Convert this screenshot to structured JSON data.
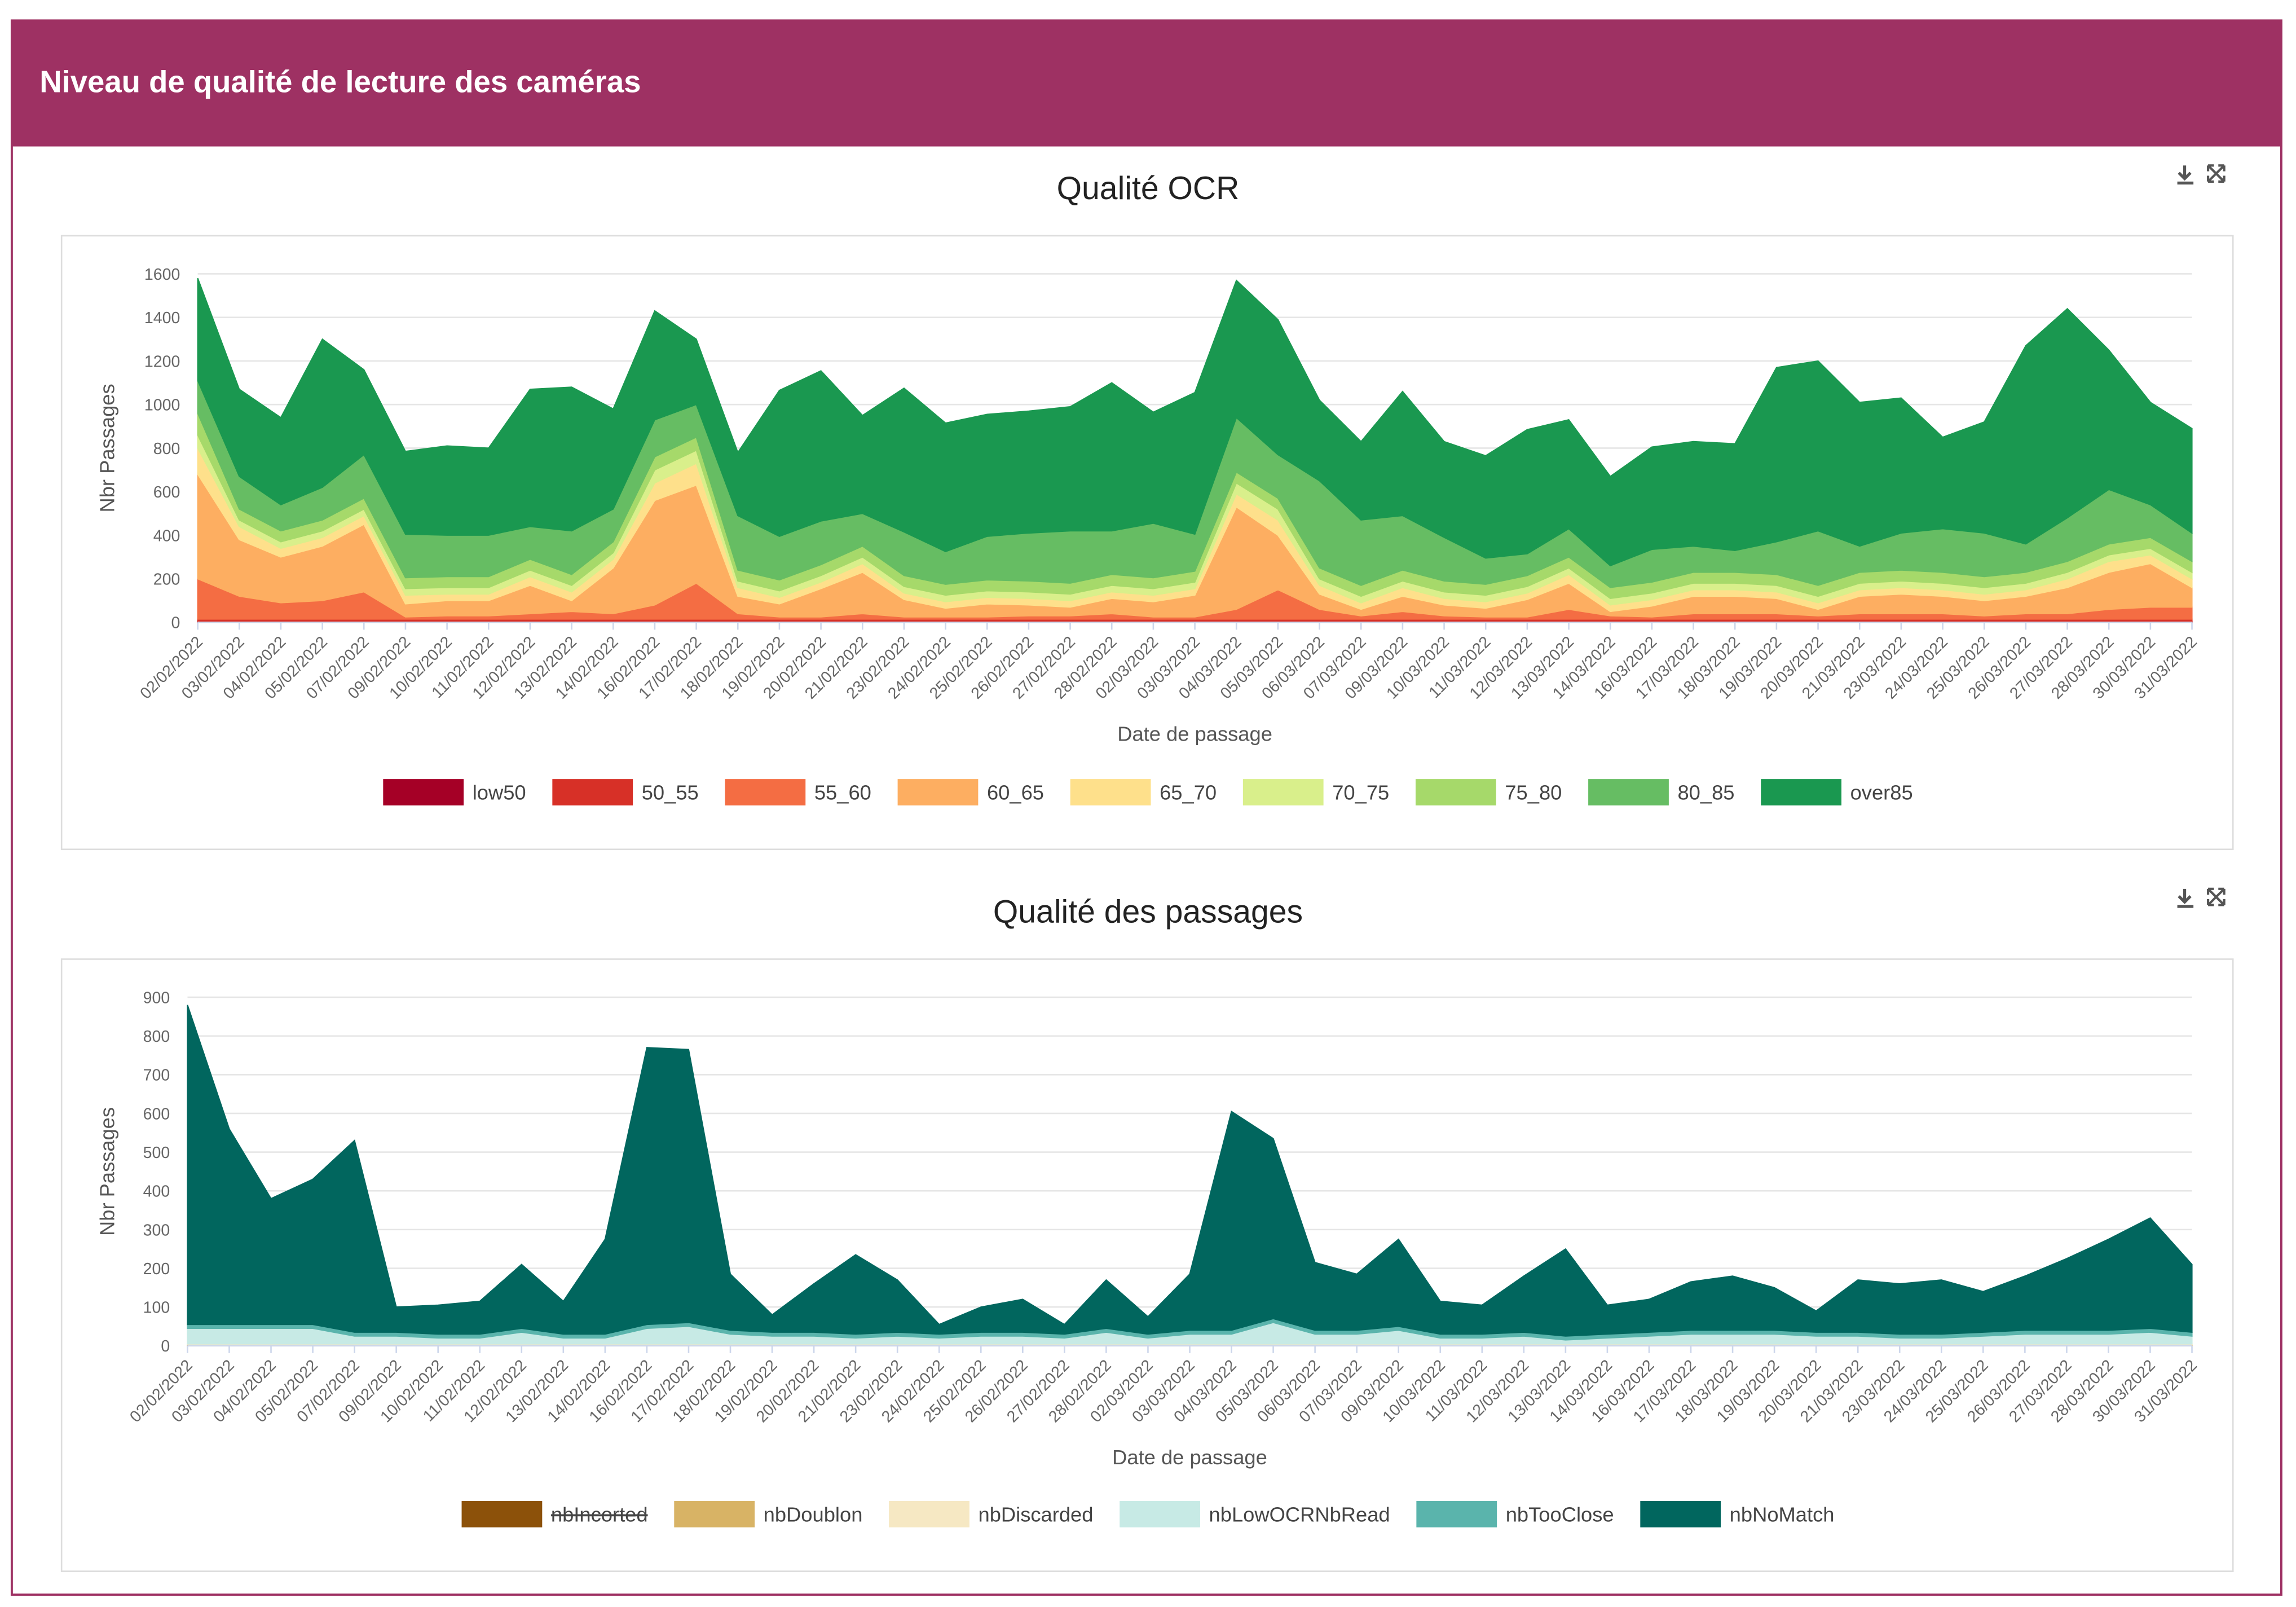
{
  "header": {
    "title": "Niveau de qualité de lecture des caméras"
  },
  "chart_data": [
    {
      "type": "area",
      "stacked": true,
      "title": "Qualité OCR",
      "x_label": "Date de passage",
      "y_label": "Nbr Passages",
      "grid": true,
      "legend": "bottom",
      "ylim": [
        0,
        1600
      ],
      "yticks": [
        0,
        200,
        400,
        600,
        800,
        1000,
        1200,
        1400,
        1600
      ],
      "categories": [
        "02/02/2022",
        "03/02/2022",
        "04/02/2022",
        "05/02/2022",
        "07/02/2022",
        "09/02/2022",
        "10/02/2022",
        "11/02/2022",
        "12/02/2022",
        "13/02/2022",
        "14/02/2022",
        "16/02/2022",
        "17/02/2022",
        "18/02/2022",
        "19/02/2022",
        "20/02/2022",
        "21/02/2022",
        "23/02/2022",
        "24/02/2022",
        "25/02/2022",
        "26/02/2022",
        "27/02/2022",
        "28/02/2022",
        "02/03/2022",
        "03/03/2022",
        "04/03/2022",
        "05/03/2022",
        "06/03/2022",
        "07/03/2022",
        "09/03/2022",
        "10/03/2022",
        "11/03/2022",
        "12/03/2022",
        "13/03/2022",
        "14/03/2022",
        "16/03/2022",
        "17/03/2022",
        "18/03/2022",
        "19/03/2022",
        "20/03/2022",
        "21/03/2022",
        "23/03/2022",
        "24/03/2022",
        "25/03/2022",
        "26/03/2022",
        "27/03/2022",
        "28/03/2022",
        "30/03/2022",
        "31/03/2022"
      ],
      "series": [
        {
          "name": "low50",
          "color": "#a50026",
          "values": [
            5,
            5,
            5,
            5,
            5,
            5,
            5,
            5,
            5,
            5,
            5,
            5,
            5,
            5,
            5,
            5,
            5,
            5,
            5,
            5,
            5,
            5,
            5,
            5,
            5,
            5,
            5,
            5,
            5,
            5,
            5,
            5,
            5,
            5,
            5,
            5,
            5,
            5,
            5,
            5,
            5,
            5,
            5,
            5,
            5,
            5,
            5,
            5,
            5
          ]
        },
        {
          "name": "50_55",
          "color": "#d73027",
          "values": [
            10,
            10,
            10,
            10,
            10,
            10,
            10,
            10,
            10,
            10,
            10,
            10,
            10,
            10,
            10,
            10,
            10,
            10,
            10,
            10,
            10,
            10,
            10,
            10,
            10,
            10,
            10,
            10,
            10,
            10,
            10,
            10,
            10,
            10,
            10,
            10,
            10,
            10,
            10,
            10,
            10,
            10,
            10,
            10,
            10,
            10,
            10,
            10,
            10
          ]
        },
        {
          "name": "55_60",
          "color": "#f46d43",
          "values": [
            185,
            105,
            75,
            85,
            125,
            10,
            15,
            15,
            25,
            35,
            25,
            65,
            165,
            25,
            10,
            10,
            25,
            10,
            10,
            10,
            15,
            15,
            25,
            10,
            10,
            45,
            135,
            45,
            15,
            35,
            15,
            10,
            10,
            45,
            15,
            10,
            25,
            25,
            25,
            15,
            25,
            25,
            25,
            15,
            25,
            25,
            45,
            55,
            55
          ]
        },
        {
          "name": "60_65",
          "color": "#fdae61",
          "values": [
            480,
            260,
            210,
            250,
            310,
            60,
            70,
            70,
            130,
            50,
            210,
            480,
            450,
            80,
            60,
            130,
            190,
            80,
            40,
            60,
            50,
            40,
            70,
            70,
            100,
            470,
            250,
            70,
            30,
            70,
            50,
            40,
            80,
            120,
            20,
            50,
            80,
            80,
            70,
            30,
            80,
            90,
            80,
            70,
            80,
            120,
            170,
            200,
            90
          ]
        },
        {
          "name": "65_70",
          "color": "#fee08b",
          "values": [
            120,
            60,
            40,
            40,
            40,
            40,
            30,
            30,
            40,
            40,
            40,
            80,
            100,
            40,
            30,
            30,
            40,
            30,
            30,
            30,
            30,
            30,
            30,
            30,
            30,
            60,
            70,
            40,
            30,
            40,
            30,
            30,
            30,
            40,
            30,
            30,
            30,
            30,
            30,
            30,
            30,
            30,
            30,
            30,
            30,
            40,
            50,
            40,
            40
          ]
        },
        {
          "name": "70_75",
          "color": "#d9ef8b",
          "values": [
            60,
            30,
            30,
            30,
            30,
            30,
            30,
            30,
            30,
            30,
            30,
            60,
            60,
            30,
            30,
            30,
            30,
            30,
            30,
            30,
            30,
            30,
            30,
            30,
            30,
            50,
            50,
            30,
            30,
            30,
            30,
            30,
            30,
            30,
            30,
            30,
            30,
            30,
            30,
            30,
            30,
            30,
            30,
            30,
            30,
            30,
            30,
            30,
            30
          ]
        },
        {
          "name": "75_80",
          "color": "#a6d96a",
          "values": [
            100,
            50,
            50,
            50,
            50,
            50,
            50,
            50,
            50,
            50,
            50,
            60,
            60,
            50,
            50,
            50,
            50,
            50,
            50,
            50,
            50,
            50,
            50,
            50,
            50,
            50,
            50,
            50,
            50,
            50,
            50,
            50,
            50,
            50,
            50,
            50,
            50,
            50,
            50,
            50,
            50,
            50,
            50,
            50,
            50,
            50,
            50,
            50,
            50
          ]
        },
        {
          "name": "80_85",
          "color": "#66bd63",
          "values": [
            150,
            150,
            120,
            150,
            200,
            200,
            190,
            190,
            150,
            200,
            150,
            170,
            150,
            250,
            200,
            200,
            150,
            200,
            150,
            200,
            220,
            240,
            200,
            250,
            170,
            250,
            200,
            400,
            300,
            250,
            200,
            120,
            100,
            130,
            100,
            150,
            120,
            100,
            150,
            250,
            120,
            170,
            200,
            200,
            130,
            200,
            250,
            150,
            130
          ]
        },
        {
          "name": "over85",
          "color": "#1a9850",
          "values": [
            470,
            400,
            400,
            680,
            390,
            380,
            410,
            400,
            630,
            660,
            460,
            500,
            300,
            290,
            670,
            690,
            450,
            660,
            590,
            560,
            560,
            570,
            680,
            510,
            650,
            630,
            620,
            370,
            360,
            570,
            440,
            470,
            570,
            500,
            410,
            470,
            480,
            490,
            800,
            780,
            660,
            620,
            420,
            510,
            910,
            960,
            640,
            470,
            480
          ]
        }
      ]
    },
    {
      "type": "area",
      "stacked": true,
      "title": "Qualité des passages",
      "x_label": "Date de passage",
      "y_label": "Nbr Passages",
      "grid": true,
      "legend": "bottom",
      "ylim": [
        0,
        900
      ],
      "yticks": [
        0,
        100,
        200,
        300,
        400,
        500,
        600,
        700,
        800,
        900
      ],
      "categories": [
        "02/02/2022",
        "03/02/2022",
        "04/02/2022",
        "05/02/2022",
        "07/02/2022",
        "09/02/2022",
        "10/02/2022",
        "11/02/2022",
        "12/02/2022",
        "13/02/2022",
        "14/02/2022",
        "16/02/2022",
        "17/02/2022",
        "18/02/2022",
        "19/02/2022",
        "20/02/2022",
        "21/02/2022",
        "23/02/2022",
        "24/02/2022",
        "25/02/2022",
        "26/02/2022",
        "27/02/2022",
        "28/02/2022",
        "02/03/2022",
        "03/03/2022",
        "04/03/2022",
        "05/03/2022",
        "06/03/2022",
        "07/03/2022",
        "09/03/2022",
        "10/03/2022",
        "11/03/2022",
        "12/03/2022",
        "13/03/2022",
        "14/03/2022",
        "16/03/2022",
        "17/03/2022",
        "18/03/2022",
        "19/03/2022",
        "20/03/2022",
        "21/03/2022",
        "23/03/2022",
        "24/03/2022",
        "25/03/2022",
        "26/03/2022",
        "27/03/2022",
        "28/03/2022",
        "30/03/2022",
        "31/03/2022"
      ],
      "series": [
        {
          "name": "nbIncorted",
          "color": "#8c510a",
          "hidden": true
        },
        {
          "name": "nbDoublon",
          "color": "#d8b365",
          "values": [
            3,
            3,
            3,
            3,
            3,
            3,
            3,
            3,
            3,
            3,
            3,
            3,
            3,
            3,
            3,
            3,
            3,
            3,
            3,
            3,
            3,
            3,
            3,
            3,
            3,
            3,
            3,
            3,
            3,
            3,
            3,
            3,
            3,
            3,
            3,
            3,
            3,
            3,
            3,
            3,
            3,
            3,
            3,
            3,
            3,
            3,
            3,
            3,
            3
          ]
        },
        {
          "name": "nbDiscarded",
          "color": "#f6e8c3",
          "values": [
            2,
            2,
            2,
            2,
            2,
            2,
            2,
            2,
            2,
            2,
            2,
            2,
            2,
            2,
            2,
            2,
            2,
            2,
            2,
            2,
            2,
            2,
            2,
            2,
            2,
            2,
            2,
            2,
            2,
            2,
            2,
            2,
            2,
            2,
            2,
            2,
            2,
            2,
            2,
            2,
            2,
            2,
            2,
            2,
            2,
            2,
            2,
            2,
            2
          ]
        },
        {
          "name": "nbLowOCRNbRead",
          "color": "#c7eae5",
          "values": [
            40,
            40,
            40,
            40,
            20,
            20,
            15,
            15,
            30,
            15,
            15,
            40,
            45,
            25,
            20,
            20,
            15,
            20,
            15,
            20,
            20,
            15,
            30,
            15,
            25,
            25,
            55,
            25,
            25,
            35,
            15,
            15,
            20,
            10,
            15,
            20,
            25,
            25,
            25,
            20,
            20,
            15,
            15,
            20,
            25,
            25,
            25,
            30,
            20
          ]
        },
        {
          "name": "nbTooClose",
          "color": "#5ab4ac",
          "values": [
            10,
            10,
            10,
            10,
            10,
            10,
            10,
            10,
            10,
            10,
            10,
            10,
            10,
            10,
            10,
            10,
            10,
            10,
            10,
            10,
            10,
            10,
            10,
            10,
            10,
            10,
            10,
            10,
            10,
            10,
            10,
            10,
            10,
            10,
            10,
            10,
            10,
            10,
            10,
            10,
            10,
            10,
            10,
            10,
            10,
            10,
            10,
            10,
            10
          ]
        },
        {
          "name": "nbNoMatch",
          "color": "#01665e",
          "values": [
            825,
            505,
            325,
            375,
            495,
            65,
            75,
            85,
            165,
            85,
            245,
            715,
            705,
            145,
            45,
            125,
            205,
            135,
            25,
            65,
            85,
            25,
            125,
            45,
            145,
            565,
            465,
            175,
            145,
            225,
            85,
            75,
            145,
            225,
            75,
            85,
            125,
            140,
            110,
            55,
            135,
            130,
            140,
            105,
            140,
            185,
            235,
            285,
            175
          ]
        }
      ]
    }
  ]
}
